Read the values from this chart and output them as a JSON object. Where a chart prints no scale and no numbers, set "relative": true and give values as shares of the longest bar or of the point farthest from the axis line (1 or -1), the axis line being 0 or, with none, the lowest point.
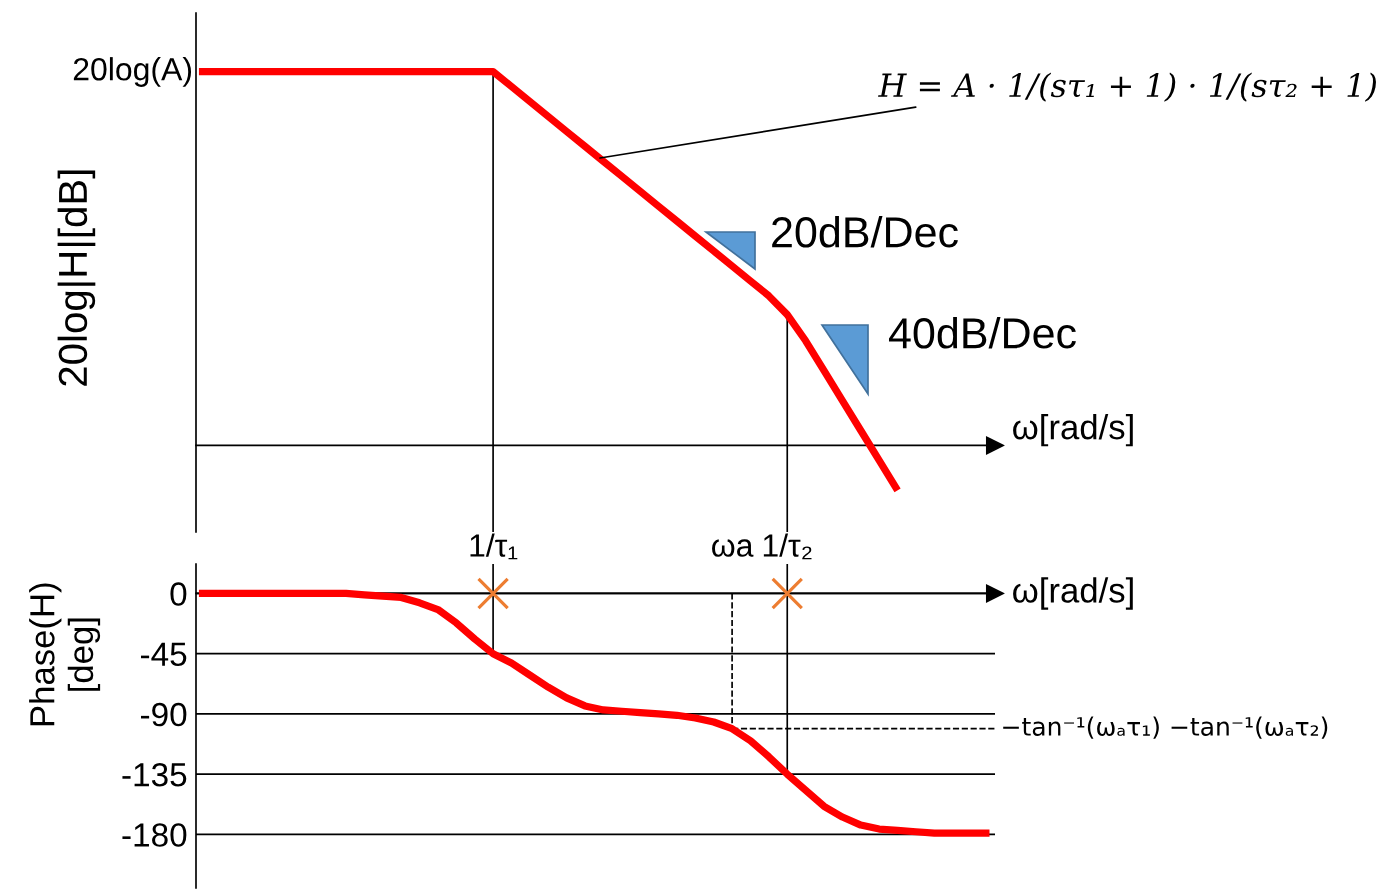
{
  "chart_data": [
    {
      "type": "line",
      "relative": true,
      "ylabel": "20log|H|[dB]",
      "xlabel": "ω[rad/s]",
      "tick_labels": "x",
      "categories": [
        null,
        null,
        null,
        null,
        null,
        null,
        null,
        null,
        null,
        null,
        null,
        null,
        null,
        null,
        null,
        null,
        "1/τ₁",
        null,
        null,
        null,
        null,
        null,
        null,
        null,
        null,
        null,
        null,
        null,
        null,
        "ωa",
        null,
        null,
        "1/τ₂",
        null,
        null,
        null,
        null,
        null,
        null,
        null,
        null,
        null,
        null,
        null
      ],
      "series": [
        {
          "color": "#ff0000",
          "values": [
            1,
            1,
            1,
            1,
            1,
            1,
            1,
            1,
            1,
            1,
            1,
            1,
            1,
            1,
            1,
            1,
            1,
            0.96,
            0.92,
            0.88,
            0.84,
            0.8,
            0.76,
            0.72,
            0.68,
            0.64,
            0.6,
            0.56,
            0.52,
            0.48,
            0.44,
            0.4,
            0.35,
            0.28,
            0.2,
            0.12,
            0.04,
            -0.04,
            -0.12,
            null,
            null,
            null,
            null,
            null
          ]
        }
      ],
      "ref_lines": [
        {
          "axis": "x",
          "value": "1/τ₁",
          "color": "#000000"
        },
        {
          "axis": "x",
          "value": "1/τ₂",
          "color": "#000000"
        }
      ],
      "annotations": [
        "20log(A)",
        "H = A · 1/(sτ₁ + 1) · 1/(sτ₂ + 1)",
        "20dB/Dec",
        "40dB/Dec"
      ]
    },
    {
      "type": "line",
      "ylabel": "Phase(H)\n[deg]",
      "xlabel": "ω[rad/s]",
      "tick_labels": "y",
      "ylim": [
        -220,
        22
      ],
      "yticks": [
        0,
        -45,
        -90,
        -135,
        -180
      ],
      "grid": "y",
      "categories": [
        null,
        null,
        null,
        null,
        null,
        null,
        null,
        null,
        null,
        null,
        null,
        null,
        null,
        null,
        null,
        null,
        "1/τ₁",
        null,
        null,
        null,
        null,
        null,
        null,
        null,
        null,
        null,
        null,
        null,
        null,
        "ωa",
        null,
        null,
        "1/τ₂",
        null,
        null,
        null,
        null,
        null,
        null,
        null,
        null,
        null,
        null,
        null
      ],
      "series": [
        {
          "color": "#ff0000",
          "values": [
            0,
            0,
            0,
            0,
            0,
            0,
            0,
            0,
            0,
            -1,
            -2,
            -3,
            -7,
            -12,
            -22,
            -34,
            -45,
            -52,
            -61,
            -70,
            -78,
            -84,
            -87,
            -88,
            -89,
            -90,
            -91,
            -93,
            -96,
            -101,
            -110,
            -122,
            -135,
            -147,
            -159,
            -167,
            -173,
            -176,
            -177,
            -178,
            -179,
            -179,
            -179,
            -179
          ]
        },
        {
          "type": "scatter",
          "marker": "cross",
          "color": "#ed7d31",
          "values": [
            null,
            null,
            null,
            null,
            null,
            null,
            null,
            null,
            null,
            null,
            null,
            null,
            null,
            null,
            null,
            null,
            0,
            null,
            null,
            null,
            null,
            null,
            null,
            null,
            null,
            null,
            null,
            null,
            null,
            null,
            null,
            null,
            0,
            null,
            null,
            null,
            null,
            null,
            null,
            null,
            null,
            null,
            null,
            null
          ]
        }
      ],
      "ref_lines": [
        {
          "axis": "x",
          "value": "1/τ₁",
          "color": "#000000"
        },
        {
          "axis": "x",
          "value": "1/τ₂",
          "color": "#000000"
        },
        {
          "axis": "x",
          "value": "ωa",
          "color": "#000000",
          "line_style": "dashed"
        },
        {
          "axis": "y",
          "value": -101,
          "color": "#000000",
          "line_style": "dashed",
          "label": "−tan⁻¹(ωₐτ₁) −tan⁻¹(ωₐτ₂)"
        }
      ]
    }
  ]
}
